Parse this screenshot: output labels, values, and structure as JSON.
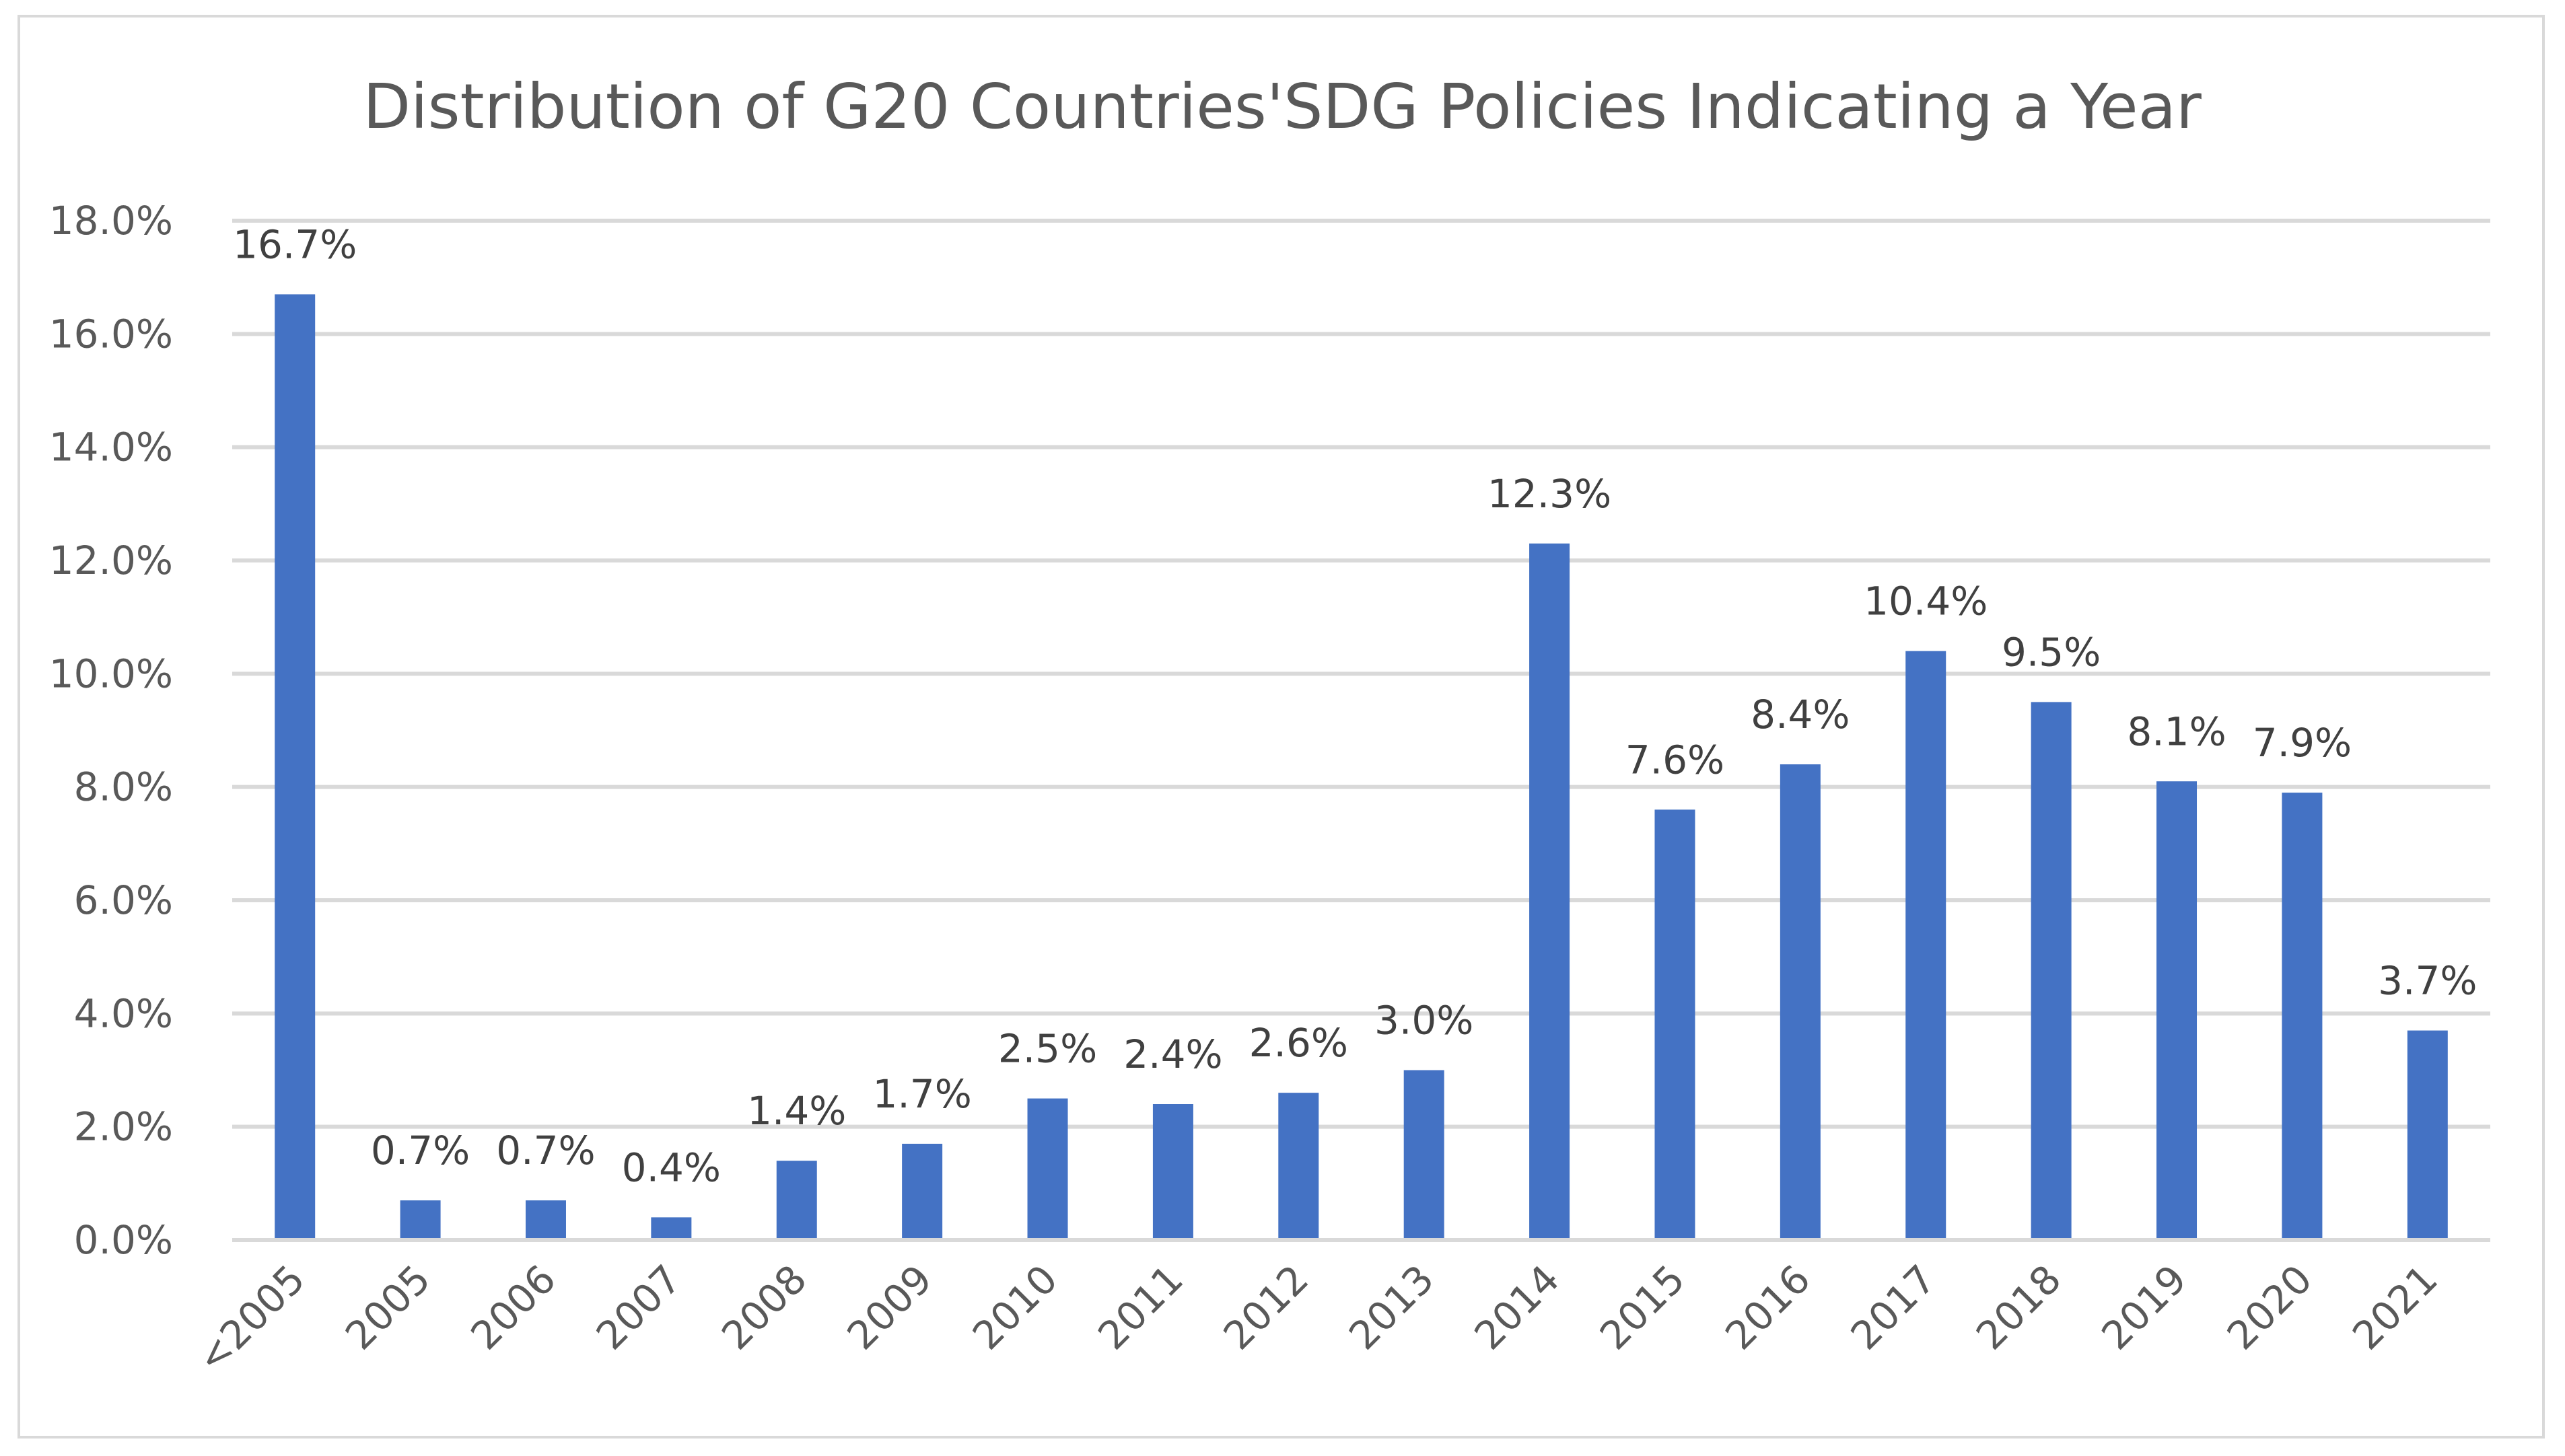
{
  "chart_data": {
    "type": "bar",
    "title": "Distribution of G20 Countries'SDG Policies Indicating a Year",
    "xlabel": "",
    "ylabel": "",
    "categories": [
      "<2005",
      "2005",
      "2006",
      "2007",
      "2008",
      "2009",
      "2010",
      "2011",
      "2012",
      "2013",
      "2014",
      "2015",
      "2016",
      "2017",
      "2018",
      "2019",
      "2020",
      "2021"
    ],
    "values": [
      16.7,
      0.7,
      0.7,
      0.4,
      1.4,
      1.7,
      2.5,
      2.4,
      2.6,
      3.0,
      12.3,
      7.6,
      8.4,
      10.4,
      9.5,
      8.1,
      7.9,
      3.7
    ],
    "data_labels": [
      "16.7%",
      "0.7%",
      "0.7%",
      "0.4%",
      "1.4%",
      "1.7%",
      "2.5%",
      "2.4%",
      "2.6%",
      "3.0%",
      "12.3%",
      "7.6%",
      "8.4%",
      "10.4%",
      "9.5%",
      "8.1%",
      "7.9%",
      "3.7%"
    ],
    "ylim": [
      0,
      18
    ],
    "y_ticks": [
      0,
      2,
      4,
      6,
      8,
      10,
      12,
      14,
      16,
      18
    ],
    "y_tick_labels": [
      "0.0%",
      "2.0%",
      "4.0%",
      "6.0%",
      "8.0%",
      "10.0%",
      "12.0%",
      "14.0%",
      "16.0%",
      "18.0%"
    ],
    "grid": true,
    "legend": "none",
    "bar_color": "#4472c4",
    "grid_color": "#d9d9d9",
    "text_color": "#595959",
    "label_color": "#404040"
  }
}
